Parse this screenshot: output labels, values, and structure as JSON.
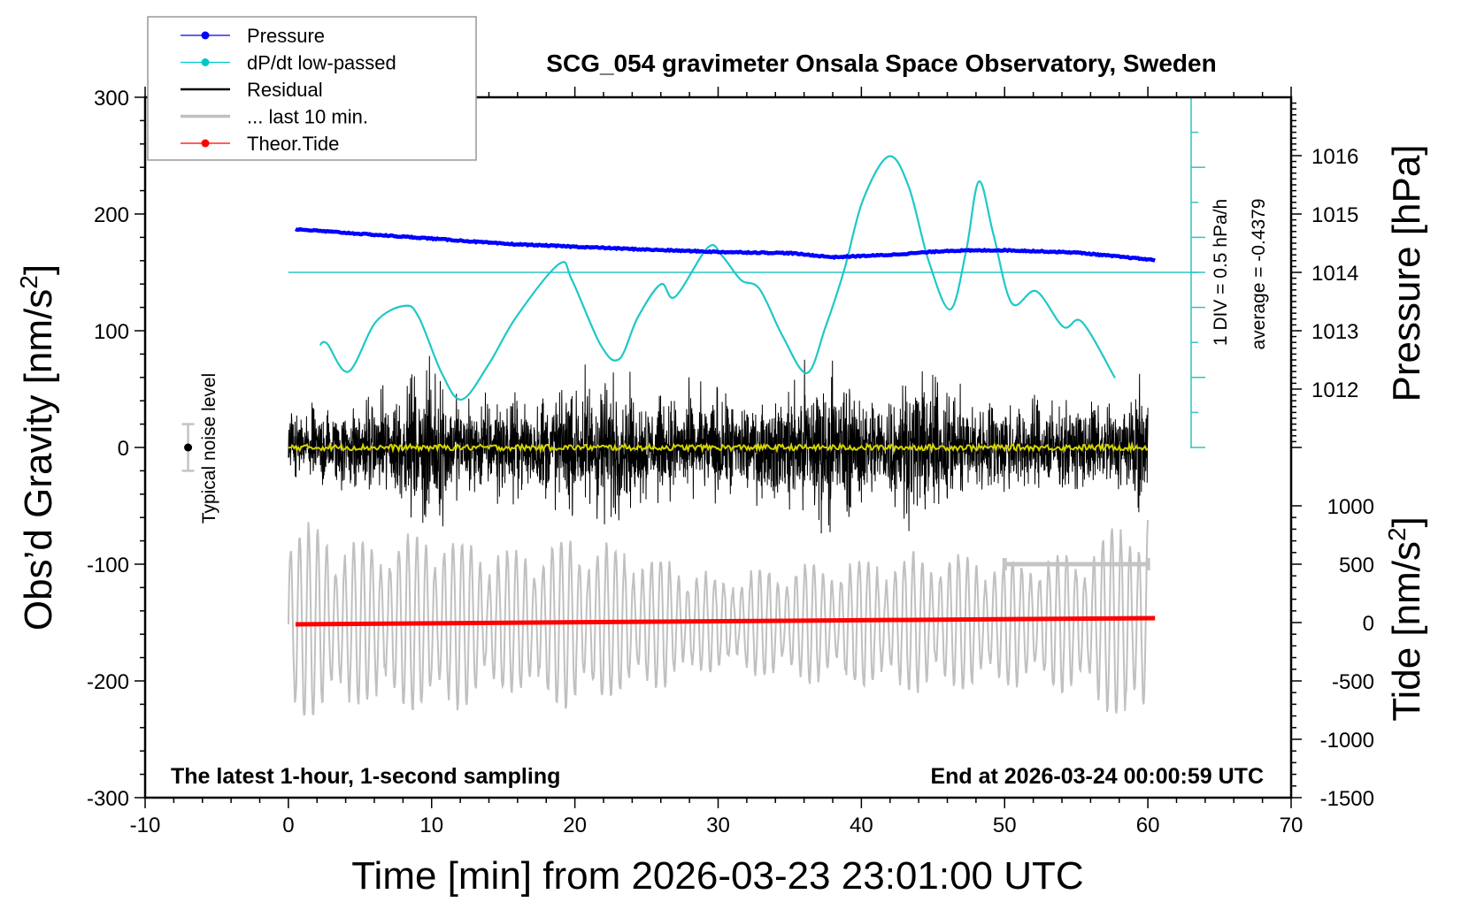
{
  "chart_data": {
    "type": "line",
    "title": "SCG_054 gravimeter Onsala Space Observatory, Sweden",
    "xlabel": "Time [min] from 2026-03-23 23:01:00 UTC",
    "ylabel_left": "Obs’d Gravity [nm/s",
    "ylabel_left_sup": "2",
    "ylabel_left_end": "]",
    "ylabel_right_top": "Pressure [hPa]",
    "ylabel_right_bottom": "Tide [nm/s",
    "ylabel_right_bottom_sup": "2",
    "ylabel_right_bottom_end": "]",
    "xlim": [
      -10,
      70
    ],
    "ylim_left": [
      -300,
      300
    ],
    "ylim_pressure": [
      1011,
      1017
    ],
    "ylim_tide": [
      -1500,
      1500
    ],
    "x_ticks": [
      "-10",
      "0",
      "10",
      "20",
      "30",
      "40",
      "50",
      "60",
      "70"
    ],
    "y_ticks_left": [
      "300",
      "200",
      "100",
      "0",
      "-100",
      "-200",
      "-300"
    ],
    "y_ticks_pressure": [
      "1016",
      "1015",
      "1014",
      "1013",
      "1012"
    ],
    "y_ticks_tide": [
      "1000",
      "500",
      "0",
      "-500",
      "-1000",
      "-1500"
    ],
    "legend": {
      "placement": "top-left",
      "entries": [
        {
          "label": "Pressure",
          "color": "#0000ff",
          "marker": true
        },
        {
          "label": "dP/dt low-passed",
          "color": "#00c8c8",
          "marker": true
        },
        {
          "label": "Residual",
          "color": "#000000",
          "marker": false
        },
        {
          "label": "... last 10 min.",
          "color": "#c0c0c0",
          "marker": false
        },
        {
          "label": "Theor.Tide",
          "color": "#ff0000",
          "marker": true
        }
      ]
    },
    "annotations": {
      "bottom_left": "The latest 1-hour, 1-second sampling",
      "bottom_right": "End at 2026-03-24 00:00:59 UTC",
      "dpdt_scale": "1 DIV = 0.5 hPa/h",
      "dpdt_average": "average = -0.4379",
      "noise_label": "Typical noise level"
    },
    "noise_level": {
      "x": -7,
      "center": 0,
      "halfwidth": 20
    },
    "last10_span": {
      "from": 50,
      "to": 60,
      "y": -100
    },
    "series": {
      "pressure": {
        "unit": "hPa",
        "x": [
          0.5,
          5,
          10,
          15,
          20,
          25,
          30,
          35,
          38,
          42,
          46,
          50,
          55,
          60.5
        ],
        "y": [
          1014.74,
          1014.66,
          1014.58,
          1014.49,
          1014.44,
          1014.39,
          1014.35,
          1014.33,
          1014.26,
          1014.3,
          1014.37,
          1014.38,
          1014.34,
          1014.21
        ]
      },
      "dpdt": {
        "unit": "hPa/h",
        "x": [
          2.2,
          2.7,
          4.2,
          6.1,
          8.1,
          9.1,
          10.7,
          12.1,
          14.0,
          15.9,
          18.9,
          19.8,
          21.8,
          23.1,
          24.4,
          26.0,
          27.0,
          29.3,
          30.3,
          31.6,
          32.9,
          34.5,
          36.2,
          37.5,
          38.8,
          40.1,
          41.9,
          43.3,
          44.7,
          46.2,
          47.3,
          48.2,
          49.2,
          50.5,
          52.2,
          54.1,
          55.4,
          57.7
        ],
        "y": [
          -1.04,
          -1.02,
          -1.42,
          -0.71,
          -0.48,
          -0.64,
          -1.44,
          -1.82,
          -1.31,
          -0.64,
          0.12,
          -0.11,
          -1.04,
          -1.24,
          -0.64,
          -0.17,
          -0.35,
          0.36,
          0.23,
          -0.11,
          -0.24,
          -0.91,
          -1.44,
          -0.78,
          0.03,
          1.03,
          1.66,
          1.23,
          0.16,
          -0.53,
          0.29,
          1.3,
          0.56,
          -0.44,
          -0.27,
          -0.78,
          -0.71,
          -1.51
        ]
      },
      "residual_envelope": {
        "unit": "nm/s2",
        "x": [
          0,
          2,
          4,
          6,
          8,
          10,
          12,
          14,
          16,
          18,
          20,
          22,
          24,
          26,
          28,
          30,
          32,
          34,
          36,
          38,
          40,
          42,
          44,
          46,
          48,
          50,
          52,
          54,
          56,
          58,
          60
        ],
        "amplitude": [
          45,
          50,
          55,
          60,
          75,
          100,
          60,
          65,
          60,
          70,
          80,
          100,
          70,
          60,
          65,
          70,
          60,
          65,
          95,
          100,
          70,
          70,
          95,
          70,
          60,
          60,
          60,
          55,
          55,
          60,
          80
        ]
      },
      "last10_envelope": {
        "unit": "nm/s2",
        "offset": -150,
        "x": [
          0,
          5,
          10,
          15,
          20,
          25,
          30,
          35,
          40,
          45,
          50,
          55,
          60
        ],
        "amplitude": [
          90,
          70,
          80,
          60,
          75,
          60,
          40,
          50,
          55,
          60,
          55,
          60,
          100
        ]
      },
      "theor_tide": {
        "unit": "nm/s2",
        "x": [
          0.5,
          60.5
        ],
        "y": [
          -15,
          38
        ]
      }
    }
  }
}
